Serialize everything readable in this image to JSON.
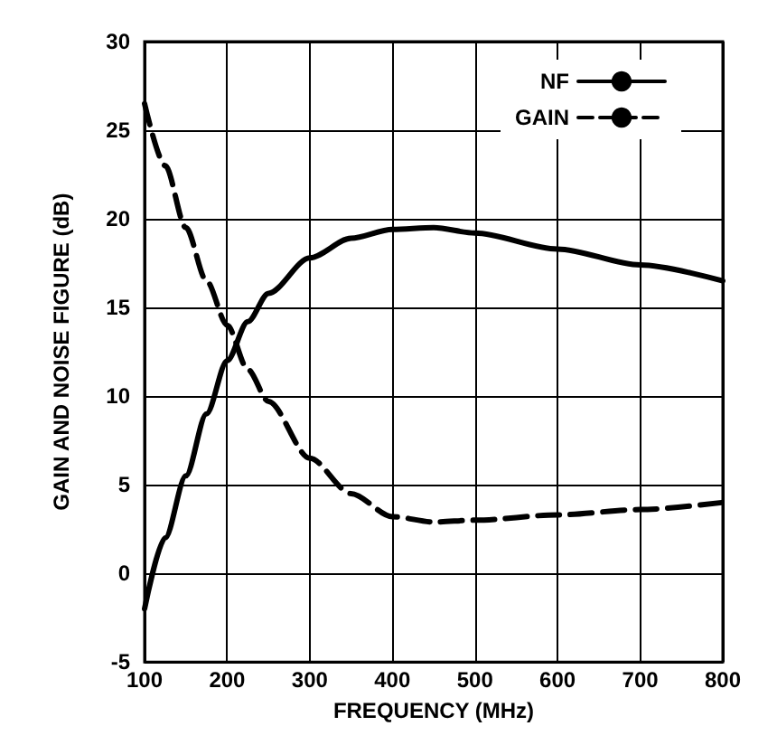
{
  "chart_data": {
    "type": "line",
    "xlabel": "FREQUENCY (MHz)",
    "ylabel": "GAIN AND NOISE FIGURE (dB)",
    "x": [
      100,
      125,
      150,
      175,
      200,
      225,
      250,
      300,
      350,
      400,
      450,
      500,
      600,
      700,
      800
    ],
    "series": [
      {
        "name": "NF",
        "color": "#000000",
        "line_style": "solid",
        "values": [
          -2,
          2,
          5.5,
          9,
          12,
          14.2,
          15.8,
          17.8,
          18.9,
          19.4,
          19.5,
          19.2,
          18.3,
          17.4,
          16.5
        ]
      },
      {
        "name": "GAIN",
        "color": "#000000",
        "line_style": "dashed",
        "values": [
          26.5,
          23,
          19.5,
          16.5,
          14,
          11.5,
          9.7,
          6.5,
          4.5,
          3.2,
          2.9,
          3,
          3.3,
          3.6,
          4
        ]
      }
    ],
    "xlim": [
      100,
      800
    ],
    "xticks": [
      100,
      200,
      300,
      400,
      500,
      600,
      700,
      800
    ],
    "ylim": [
      -5,
      30
    ],
    "yticks": [
      -5,
      0,
      5,
      10,
      15,
      20,
      25,
      30
    ],
    "grid": true,
    "legend": "top right",
    "marker": "none"
  }
}
